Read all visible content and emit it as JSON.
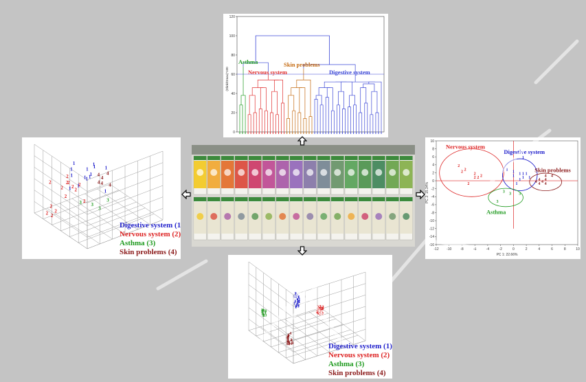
{
  "colors": {
    "digestive": "#2222cc",
    "nervous": "#dd2222",
    "asthma": "#1f9a1f",
    "skin": "#8b1a1a",
    "dendro_blue": "#3b47d6",
    "dendro_red": "#e03030",
    "dendro_orange": "#c46a10"
  },
  "legend": [
    {
      "label": "Digestive system (1)",
      "color": "#2222cc"
    },
    {
      "label": "Nervous system (2)",
      "color": "#dd2222"
    },
    {
      "label": "Asthma (3)",
      "color": "#1f9a1f"
    },
    {
      "label": "Skin problems (4)",
      "color": "#8b1a1a"
    }
  ],
  "chart_data": [
    {
      "type": "dendrogram",
      "ylabel": "(Dlink/Dmax)*100",
      "ylim": [
        0,
        120
      ],
      "yticks": [
        "0",
        "20",
        "40",
        "60",
        "80",
        "100",
        "120"
      ],
      "cluster_labels": [
        "Asthma",
        "Nervous system",
        "Skin problems",
        "Digestive system"
      ],
      "cut_height": 60
    },
    {
      "type": "scatter",
      "xlabel": "PC 1: 22.66%",
      "ylabel": "PC 2: 15.34%",
      "xlim": [
        -12,
        10
      ],
      "ylim": [
        -16,
        10
      ],
      "xticks": [
        "-12",
        "-10",
        "-8",
        "-6",
        "-4",
        "-2",
        "0",
        "2",
        "4",
        "6",
        "8",
        "10"
      ],
      "yticks": [
        "10",
        "8",
        "6",
        "4",
        "2",
        "0",
        "-2",
        "-4",
        "-6",
        "-8",
        "-10",
        "-12",
        "-14",
        "-16"
      ],
      "cluster_labels": [
        "Nervous system",
        "Digestive system",
        "Skin problems",
        "Asthma"
      ],
      "series": [
        {
          "name": "Nervous system",
          "marker": "2",
          "points": [
            [
              -8.5,
              3.5
            ],
            [
              -7.5,
              2.5
            ],
            [
              -8,
              2
            ],
            [
              -6,
              1.5
            ],
            [
              -6,
              0.5
            ],
            [
              -5,
              1
            ],
            [
              -5.5,
              0.5
            ],
            [
              -7,
              -1
            ]
          ]
        },
        {
          "name": "Digestive system",
          "marker": "1",
          "points": [
            [
              1.5,
              5.5
            ],
            [
              -1,
              2.5
            ],
            [
              0,
              2
            ],
            [
              1,
              1.5
            ],
            [
              1.5,
              1.5
            ],
            [
              2,
              1.5
            ],
            [
              0,
              1
            ],
            [
              1.5,
              0.5
            ],
            [
              2.5,
              0.5
            ],
            [
              0.5,
              -1
            ],
            [
              1,
              0
            ]
          ]
        },
        {
          "name": "Skin problems",
          "marker": "4",
          "points": [
            [
              5,
              1
            ],
            [
              6,
              1
            ],
            [
              4,
              0
            ],
            [
              5,
              0
            ],
            [
              3.5,
              -0.5
            ],
            [
              4.5,
              -0.5
            ],
            [
              5,
              -1
            ],
            [
              4,
              -1
            ]
          ]
        },
        {
          "name": "Asthma",
          "marker": "3",
          "points": [
            [
              -1.5,
              -3
            ],
            [
              -0.5,
              -3.5
            ],
            [
              1,
              -3.5
            ],
            [
              -2.5,
              -5.5
            ]
          ]
        }
      ]
    },
    {
      "type": "scatter3d",
      "series": [
        {
          "name": "Digestive system",
          "marker": "1",
          "count": 14
        },
        {
          "name": "Nervous system",
          "marker": "2",
          "count": 14
        },
        {
          "name": "Asthma",
          "marker": "3",
          "count": 4
        },
        {
          "name": "Skin problems",
          "marker": "4",
          "count": 6
        }
      ]
    },
    {
      "type": "scatter3d",
      "series": [
        {
          "name": "Digestive system",
          "marker": "1",
          "count": 30
        },
        {
          "name": "Nervous system",
          "marker": "2",
          "count": 24
        },
        {
          "name": "Asthma",
          "marker": "3",
          "count": 14
        },
        {
          "name": "Skin problems",
          "marker": "4",
          "count": 20
        }
      ]
    }
  ]
}
